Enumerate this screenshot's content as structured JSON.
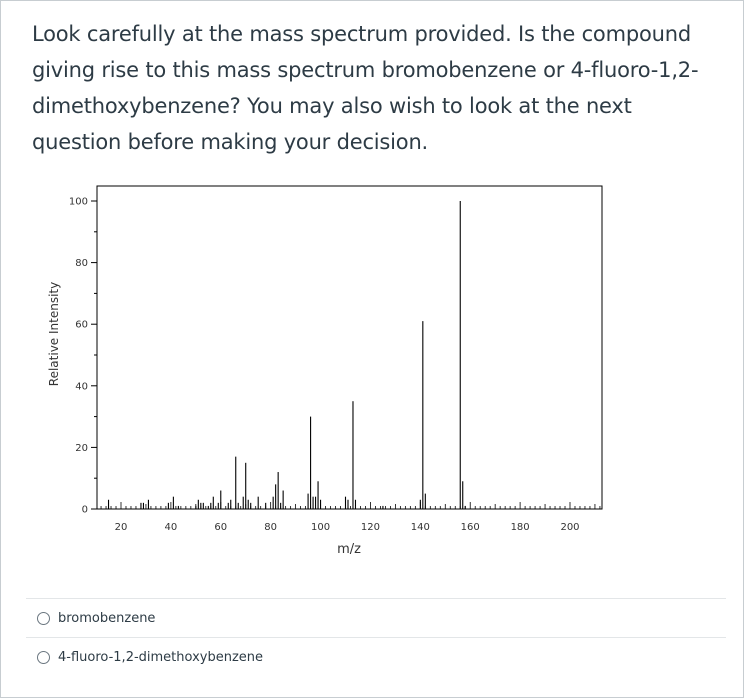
{
  "question": {
    "text": "Look carefully at the mass spectrum provided.  Is the compound giving rise to this mass spectrum bromobenzene or 4-fluoro-1,2-dimethoxybenzene? You may also wish to look at the next question before making your decision."
  },
  "answers": [
    {
      "label": "bromobenzene",
      "selected": false
    },
    {
      "label": "4-fluoro-1,2-dimethoxybenzene",
      "selected": false
    }
  ],
  "chart_data": {
    "type": "bar",
    "xlabel": "m/z",
    "ylabel": "Relative Intensity",
    "xlim": [
      10,
      212
    ],
    "ylim": [
      0,
      100
    ],
    "x_ticks": [
      20,
      40,
      60,
      80,
      100,
      120,
      140,
      160,
      180,
      200
    ],
    "y_ticks": [
      0,
      20,
      40,
      60,
      80,
      100
    ],
    "grid": false,
    "peaks": [
      {
        "mz": 15,
        "intensity": 3
      },
      {
        "mz": 28,
        "intensity": 2
      },
      {
        "mz": 29,
        "intensity": 2
      },
      {
        "mz": 31,
        "intensity": 3
      },
      {
        "mz": 39,
        "intensity": 2
      },
      {
        "mz": 41,
        "intensity": 4
      },
      {
        "mz": 43,
        "intensity": 1
      },
      {
        "mz": 50,
        "intensity": 1
      },
      {
        "mz": 51,
        "intensity": 3
      },
      {
        "mz": 52,
        "intensity": 2
      },
      {
        "mz": 53,
        "intensity": 2
      },
      {
        "mz": 55,
        "intensity": 1
      },
      {
        "mz": 56,
        "intensity": 2
      },
      {
        "mz": 57,
        "intensity": 4
      },
      {
        "mz": 59,
        "intensity": 2
      },
      {
        "mz": 60,
        "intensity": 6
      },
      {
        "mz": 63,
        "intensity": 2
      },
      {
        "mz": 64,
        "intensity": 3
      },
      {
        "mz": 66,
        "intensity": 17
      },
      {
        "mz": 67,
        "intensity": 2
      },
      {
        "mz": 69,
        "intensity": 4
      },
      {
        "mz": 70,
        "intensity": 15
      },
      {
        "mz": 71,
        "intensity": 3
      },
      {
        "mz": 72,
        "intensity": 2
      },
      {
        "mz": 75,
        "intensity": 4
      },
      {
        "mz": 78,
        "intensity": 2
      },
      {
        "mz": 81,
        "intensity": 4
      },
      {
        "mz": 82,
        "intensity": 8
      },
      {
        "mz": 83,
        "intensity": 12
      },
      {
        "mz": 84,
        "intensity": 2
      },
      {
        "mz": 85,
        "intensity": 6
      },
      {
        "mz": 95,
        "intensity": 5
      },
      {
        "mz": 96,
        "intensity": 30
      },
      {
        "mz": 97,
        "intensity": 4
      },
      {
        "mz": 98,
        "intensity": 4
      },
      {
        "mz": 99,
        "intensity": 9
      },
      {
        "mz": 100,
        "intensity": 3
      },
      {
        "mz": 110,
        "intensity": 4
      },
      {
        "mz": 111,
        "intensity": 3
      },
      {
        "mz": 113,
        "intensity": 35
      },
      {
        "mz": 114,
        "intensity": 3
      },
      {
        "mz": 125,
        "intensity": 1
      },
      {
        "mz": 140,
        "intensity": 3
      },
      {
        "mz": 141,
        "intensity": 61
      },
      {
        "mz": 142,
        "intensity": 5
      },
      {
        "mz": 156,
        "intensity": 100
      },
      {
        "mz": 157,
        "intensity": 9
      },
      {
        "mz": 158,
        "intensity": 1
      }
    ]
  }
}
